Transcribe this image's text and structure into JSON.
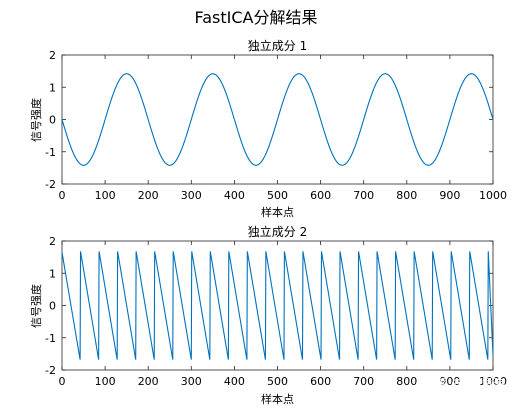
{
  "figure_title": "FastICA分解结果",
  "watermark": "知乎 @Mr.看海",
  "chart_data": [
    {
      "type": "line",
      "title": "独立成分 1",
      "xlabel": "样本点",
      "ylabel": "信号强度",
      "xlim": [
        0,
        1000
      ],
      "ylim": [
        -2,
        2
      ],
      "xticks": [
        0,
        100,
        200,
        300,
        400,
        500,
        600,
        700,
        800,
        900,
        1000
      ],
      "yticks": [
        -2,
        -1,
        0,
        1,
        2
      ],
      "color": "#0072BD",
      "grid": false,
      "series": [
        {
          "x": [
            0,
            50,
            100,
            150,
            200,
            250,
            300,
            350,
            400,
            450,
            500,
            550,
            600,
            650,
            700,
            750,
            800,
            850,
            900,
            950,
            1000
          ],
          "y": [
            0,
            -1.42,
            0,
            1.42,
            0,
            -1.42,
            0,
            1.42,
            0,
            -1.42,
            0,
            1.42,
            0,
            -1.42,
            0,
            1.42,
            0,
            -1.42,
            0,
            1.42,
            0
          ]
        }
      ]
    },
    {
      "type": "line",
      "title": "独立成分 2",
      "xlabel": "样本点",
      "ylabel": "信号强度",
      "xlim": [
        0,
        1000
      ],
      "ylim": [
        -2,
        2
      ],
      "xticks": [
        0,
        100,
        200,
        300,
        400,
        500,
        600,
        700,
        800,
        900,
        1000
      ],
      "yticks": [
        -2,
        -1,
        0,
        1,
        2
      ],
      "color": "#0072BD",
      "grid": false,
      "series": [
        {
          "x": [
            0,
            42,
            43,
            85,
            86,
            128,
            129,
            171,
            172,
            214,
            215,
            257,
            258,
            300,
            301,
            343,
            344,
            386,
            387,
            429,
            430,
            472,
            473,
            515,
            516,
            558,
            559,
            601,
            602,
            644,
            645,
            687,
            688,
            730,
            731,
            773,
            774,
            816,
            817,
            859,
            860,
            902,
            903,
            945,
            946,
            988,
            989,
            1000
          ],
          "y": [
            1.65,
            -1.68,
            1.68,
            -1.68,
            1.68,
            -1.68,
            1.68,
            -1.68,
            1.68,
            -1.68,
            1.68,
            -1.68,
            1.68,
            -1.68,
            1.68,
            -1.68,
            1.68,
            -1.68,
            1.68,
            -1.68,
            1.68,
            -1.68,
            1.68,
            -1.68,
            1.68,
            -1.68,
            1.68,
            -1.68,
            1.68,
            -1.68,
            1.68,
            -1.68,
            1.68,
            -1.68,
            1.68,
            -1.68,
            1.68,
            -1.68,
            1.68,
            -1.68,
            1.68,
            -1.68,
            1.68,
            -1.68,
            1.68,
            -1.68,
            1.68,
            -1.55
          ]
        }
      ]
    }
  ]
}
